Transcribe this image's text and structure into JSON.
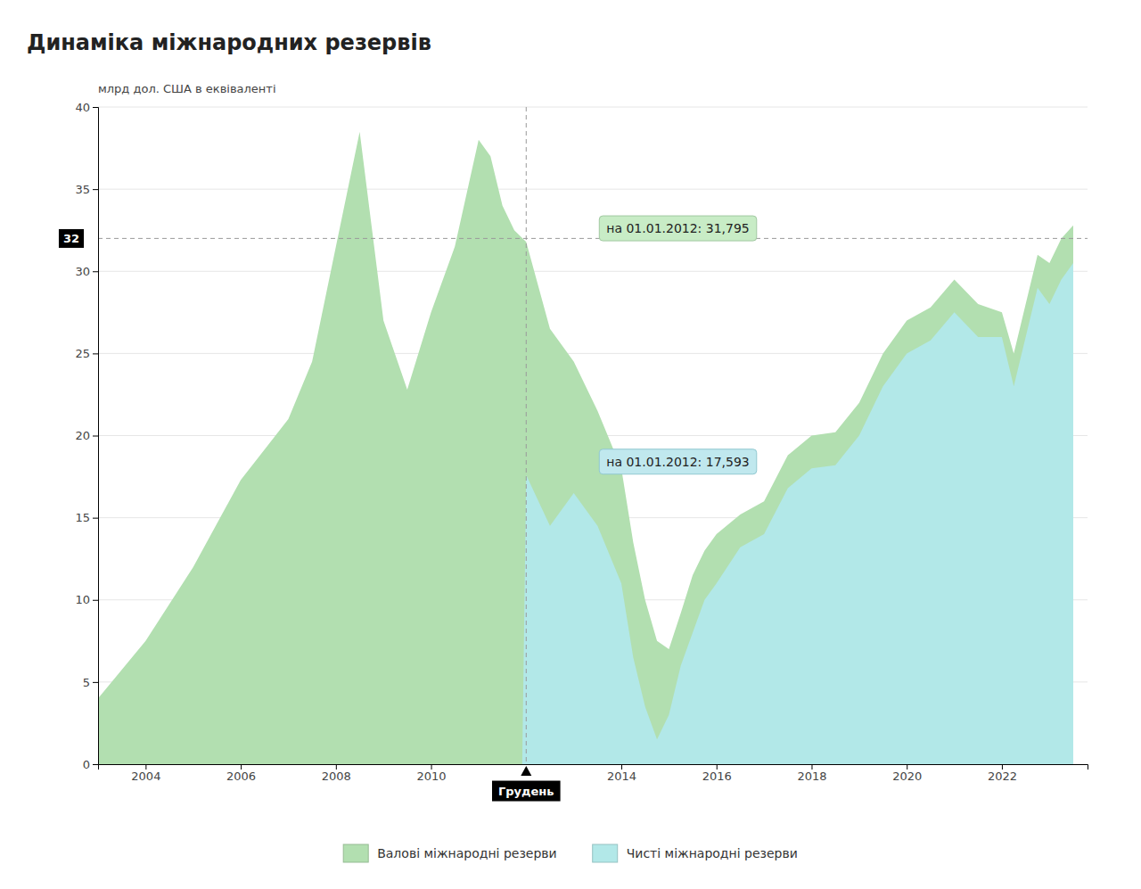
{
  "chart_data": {
    "type": "area",
    "title": "Динаміка міжнародних резервів",
    "ylabel": "млрд дол. США в еквіваленті",
    "xlim": [
      2003.0,
      2023.8
    ],
    "xticks": [
      2004,
      2006,
      2008,
      2010,
      2014,
      2016,
      2018,
      2020,
      2022
    ],
    "ylim": [
      0,
      40
    ],
    "yticks": [
      0,
      5,
      10,
      15,
      20,
      25,
      30,
      35,
      40
    ],
    "grid": true,
    "legend": "bottom",
    "series": [
      {
        "name": "Валові міжнародні резерви",
        "color": "#b2dfb0",
        "x": [
          2003.0,
          2004.0,
          2005.0,
          2006.0,
          2007.0,
          2007.5,
          2008.0,
          2008.5,
          2009.0,
          2009.5,
          2010.0,
          2010.5,
          2011.0,
          2011.25,
          2011.5,
          2011.75,
          2012.0,
          2012.5,
          2013.0,
          2013.5,
          2014.0,
          2014.25,
          2014.5,
          2014.75,
          2015.0,
          2015.25,
          2015.5,
          2015.75,
          2016.0,
          2016.5,
          2017.0,
          2017.5,
          2018.0,
          2018.5,
          2019.0,
          2019.5,
          2020.0,
          2020.5,
          2021.0,
          2021.5,
          2022.0,
          2022.25,
          2022.5,
          2022.75,
          2023.0,
          2023.25,
          2023.5
        ],
        "values": [
          4.0,
          7.5,
          12.0,
          17.3,
          21.0,
          24.5,
          31.5,
          38.5,
          27.0,
          22.8,
          27.5,
          31.5,
          38.0,
          37.0,
          34.0,
          32.5,
          31.795,
          26.5,
          24.5,
          21.5,
          18.0,
          13.5,
          10.0,
          7.5,
          7.0,
          9.2,
          11.5,
          13.0,
          14.0,
          15.2,
          16.0,
          18.8,
          20.0,
          20.2,
          22.0,
          25.0,
          27.0,
          27.8,
          29.5,
          28.0,
          27.5,
          25.0,
          28.0,
          31.0,
          30.5,
          32.0,
          32.8
        ]
      },
      {
        "name": "Чисті міжнародні резерви",
        "color": "#b2e8e8",
        "x": [
          2003.0,
          2011.917,
          2012.0,
          2012.5,
          2013.0,
          2013.5,
          2014.0,
          2014.25,
          2014.5,
          2014.75,
          2015.0,
          2015.25,
          2015.5,
          2015.75,
          2016.0,
          2016.5,
          2017.0,
          2017.5,
          2018.0,
          2018.5,
          2019.0,
          2019.5,
          2020.0,
          2020.5,
          2021.0,
          2021.5,
          2022.0,
          2022.25,
          2022.5,
          2022.75,
          2023.0,
          2023.25,
          2023.5
        ],
        "values": [
          0.0,
          0.0,
          17.593,
          14.5,
          16.5,
          14.5,
          11.0,
          6.5,
          3.5,
          1.5,
          3.0,
          6.0,
          8.0,
          10.0,
          11.0,
          13.2,
          14.0,
          16.8,
          18.0,
          18.2,
          20.0,
          23.0,
          25.0,
          25.8,
          27.5,
          26.0,
          26.0,
          23.0,
          26.0,
          29.0,
          28.0,
          29.5,
          30.5
        ]
      }
    ],
    "reference_lines": [
      {
        "axis": "x",
        "value": 2012.0,
        "label": "Грудень"
      },
      {
        "axis": "y",
        "value": 32
      }
    ],
    "annotations": [
      {
        "text": "на 01.01.2012: 31,795",
        "x": 2012.0,
        "y": 31.795
      },
      {
        "text": "на 01.01.2012: 17,593",
        "x": 2012.0,
        "y": 17.593
      }
    ]
  }
}
